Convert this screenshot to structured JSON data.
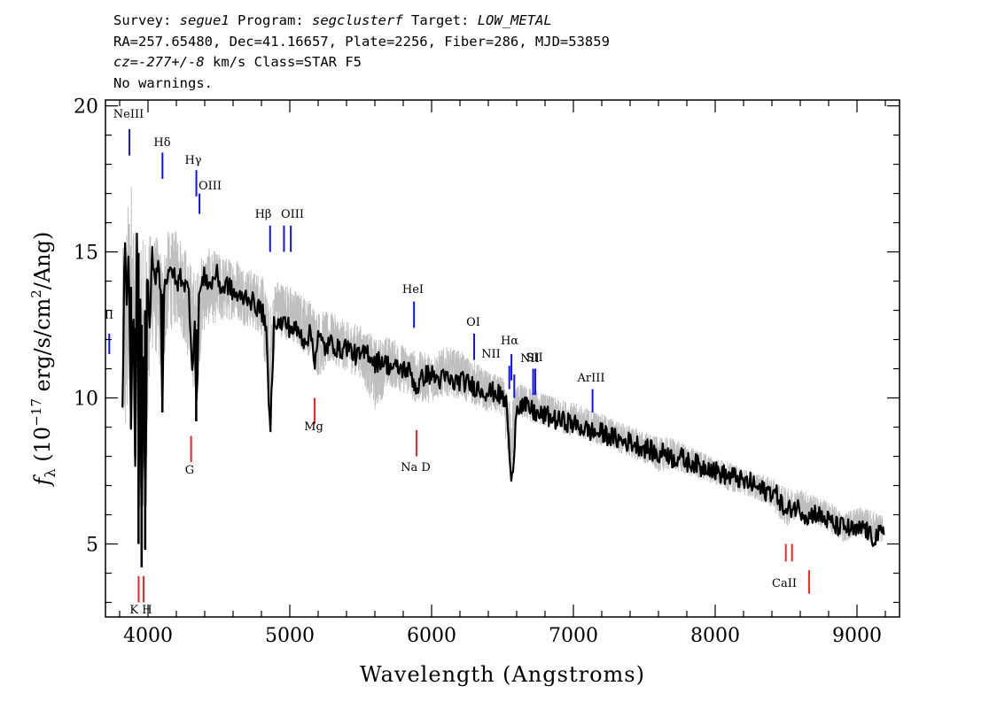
{
  "header": {
    "survey_label": "Survey:",
    "survey": "segue1",
    "program_label": "Program:",
    "program": "segclusterf",
    "target_label": "Target:",
    "target": "LOW_METAL",
    "line2": "RA=257.65480, Dec=41.16657, Plate=2256, Fiber=286, MJD=53859",
    "cz_label": "cz=",
    "cz": "-277+/-8",
    "cz_unit": "km/s",
    "class_text": "Class=STAR F5",
    "warnings": "No warnings."
  },
  "chart_data": {
    "type": "line",
    "xlabel": "Wavelength (Angstroms)",
    "ylabel": "f_λ (10^-17 erg/s/cm^2/Ang)",
    "xlim": [
      3700,
      9300
    ],
    "ylim": [
      2.5,
      20.2
    ],
    "x_ticks": [
      4000,
      5000,
      6000,
      7000,
      8000,
      9000
    ],
    "y_ticks": [
      5,
      10,
      15,
      20
    ],
    "grid": false,
    "series": [
      {
        "role": "spectrum-raw",
        "color": "#bebebe",
        "x": [
          3820,
          3850,
          3880,
          3910,
          3940,
          3960,
          3980,
          4020,
          4060,
          4100,
          4140,
          4180,
          4220,
          4260,
          4300,
          4340,
          4380,
          4420,
          4460,
          4500,
          4560,
          4620,
          4680,
          4740,
          4800,
          4860,
          4900,
          4960,
          5020,
          5080,
          5140,
          5200,
          5300,
          5400,
          5500,
          5600,
          5700,
          5800,
          5900,
          6000,
          6100,
          6200,
          6300,
          6400,
          6500,
          6560,
          6600,
          6700,
          6800,
          6900,
          7000,
          7100,
          7200,
          7300,
          7400,
          7500,
          7600,
          7700,
          7800,
          7900,
          8000,
          8100,
          8200,
          8300,
          8400,
          8500,
          8600,
          8700,
          8800,
          8900,
          9000,
          9100,
          9180
        ],
        "lower": [
          7.0,
          6.5,
          8.0,
          9.0,
          4.5,
          4.2,
          4.4,
          10.8,
          10.5,
          9.8,
          11.5,
          11.7,
          11.8,
          11.0,
          10.0,
          8.7,
          11.5,
          11.9,
          12.0,
          12.0,
          12.1,
          12.3,
          12.0,
          11.9,
          11.7,
          8.0,
          11.8,
          11.6,
          11.4,
          11.2,
          11.0,
          10.2,
          10.8,
          10.5,
          10.3,
          9.0,
          10.0,
          9.8,
          9.4,
          9.5,
          9.7,
          9.6,
          9.4,
          9.2,
          9.1,
          6.5,
          9.1,
          8.9,
          8.8,
          8.6,
          8.4,
          8.3,
          8.1,
          7.9,
          7.7,
          7.5,
          7.2,
          7.3,
          7.1,
          7.0,
          6.8,
          6.6,
          6.5,
          6.3,
          6.0,
          5.3,
          5.8,
          5.4,
          5.2,
          4.8,
          5.1,
          4.8,
          4.8
        ],
        "upper": [
          16.5,
          18.0,
          19.5,
          17.0,
          15.5,
          18.5,
          17.5,
          16.5,
          16.5,
          15.8,
          16.5,
          16.4,
          16.5,
          16.0,
          15.5,
          15.3,
          15.5,
          15.7,
          15.6,
          15.5,
          15.3,
          15.3,
          15.0,
          14.8,
          14.8,
          14.0,
          14.5,
          14.4,
          14.2,
          14.0,
          13.8,
          13.5,
          13.3,
          13.0,
          12.9,
          12.6,
          12.5,
          12.2,
          12.0,
          11.9,
          12.1,
          12.0,
          11.6,
          11.2,
          11.0,
          10.4,
          10.8,
          10.6,
          10.4,
          10.2,
          10.1,
          9.9,
          9.7,
          9.5,
          9.3,
          9.1,
          8.9,
          8.9,
          8.6,
          8.4,
          8.2,
          8.0,
          7.8,
          7.6,
          7.5,
          7.2,
          7.1,
          6.9,
          6.7,
          6.3,
          6.5,
          6.4,
          6.2
        ]
      },
      {
        "role": "spectrum-smoothed",
        "color": "#000000",
        "x": [
          3820,
          3835,
          3850,
          3865,
          3880,
          3895,
          3910,
          3925,
          3933,
          3945,
          3955,
          3968,
          3980,
          3995,
          4010,
          4030,
          4050,
          4070,
          4090,
          4101,
          4115,
          4140,
          4170,
          4200,
          4230,
          4260,
          4290,
          4310,
          4330,
          4340,
          4360,
          4400,
          4440,
          4480,
          4520,
          4560,
          4600,
          4650,
          4700,
          4750,
          4800,
          4830,
          4861,
          4890,
          4920,
          4960,
          5000,
          5050,
          5100,
          5150,
          5175,
          5200,
          5250,
          5300,
          5350,
          5400,
          5450,
          5500,
          5550,
          5600,
          5650,
          5700,
          5750,
          5800,
          5850,
          5893,
          5950,
          6000,
          6050,
          6100,
          6150,
          6200,
          6250,
          6300,
          6350,
          6400,
          6450,
          6500,
          6530,
          6563,
          6600,
          6650,
          6700,
          6750,
          6800,
          6850,
          6900,
          6950,
          7000,
          7050,
          7100,
          7150,
          7200,
          7250,
          7300,
          7350,
          7400,
          7450,
          7500,
          7550,
          7600,
          7650,
          7700,
          7750,
          7800,
          7850,
          7900,
          7950,
          8000,
          8050,
          8100,
          8150,
          8200,
          8250,
          8300,
          8350,
          8400,
          8450,
          8498,
          8542,
          8600,
          8662,
          8700,
          8750,
          8800,
          8850,
          8900,
          8950,
          9000,
          9050,
          9100,
          9150,
          9190
        ],
        "y": [
          9.4,
          15.5,
          13.0,
          15.0,
          9.0,
          13.5,
          8.0,
          17.5,
          5.0,
          14.0,
          4.2,
          13.0,
          4.8,
          14.5,
          12.0,
          15.0,
          14.0,
          14.8,
          13.5,
          9.5,
          14.2,
          14.0,
          14.5,
          13.8,
          14.2,
          13.9,
          13.6,
          11.0,
          12.5,
          9.2,
          13.5,
          14.2,
          13.8,
          14.3,
          13.7,
          13.9,
          13.6,
          13.4,
          13.5,
          13.2,
          13.0,
          12.6,
          8.7,
          12.8,
          12.5,
          12.6,
          12.4,
          12.3,
          12.0,
          12.2,
          11.3,
          12.1,
          11.7,
          11.9,
          11.6,
          11.8,
          11.5,
          11.4,
          11.6,
          11.2,
          11.3,
          11.1,
          11.0,
          11.0,
          10.9,
          10.3,
          10.8,
          10.8,
          10.6,
          10.7,
          10.5,
          10.6,
          10.5,
          10.4,
          10.3,
          10.2,
          10.2,
          10.0,
          9.8,
          6.8,
          9.8,
          9.7,
          9.6,
          9.4,
          9.4,
          9.3,
          9.2,
          9.2,
          9.1,
          9.0,
          8.9,
          8.8,
          8.8,
          8.7,
          8.6,
          8.5,
          8.5,
          8.4,
          8.3,
          8.2,
          8.0,
          8.2,
          7.9,
          8.0,
          7.8,
          7.8,
          7.6,
          7.7,
          7.5,
          7.4,
          7.3,
          7.3,
          7.1,
          7.1,
          6.9,
          6.8,
          6.8,
          6.6,
          6.0,
          6.3,
          6.2,
          5.9,
          6.1,
          5.9,
          5.8,
          5.6,
          5.6,
          5.5,
          5.4,
          5.6,
          5.2,
          5.3,
          5.3
        ]
      }
    ],
    "emission_lines": [
      {
        "label": "NeIII",
        "wave": 3869,
        "ymin": 18.3,
        "ymax": 19.2
      },
      {
        "label": "Hδ",
        "wave": 4102,
        "ymin": 17.5,
        "ymax": 18.4
      },
      {
        "label": "Hγ",
        "wave": 4341,
        "ymin": 16.9,
        "ymax": 17.8
      },
      {
        "label": "OIII",
        "wave": 4363,
        "ymin": 16.3,
        "ymax": 17.0
      },
      {
        "label": "Hβ",
        "wave": 4861,
        "ymin": 15.0,
        "ymax": 15.9
      },
      {
        "label": "OIII",
        "wave": 4959,
        "ymin": 15.0,
        "ymax": 15.9
      },
      {
        "label": "OIII",
        "wave": 5007,
        "ymin": 15.0,
        "ymax": 15.9
      },
      {
        "label": "HeI",
        "wave": 5876,
        "ymin": 12.4,
        "ymax": 13.3
      },
      {
        "label": "OI",
        "wave": 6300,
        "ymin": 11.3,
        "ymax": 12.2
      },
      {
        "label": "NII",
        "wave": 6548,
        "ymin": 10.3,
        "ymax": 11.1
      },
      {
        "label": "Hα",
        "wave": 6563,
        "ymin": 10.6,
        "ymax": 11.5
      },
      {
        "label": "NII",
        "wave": 6583,
        "ymin": 10.0,
        "ymax": 10.8
      },
      {
        "label": "SII",
        "wave": 6716,
        "ymin": 10.1,
        "ymax": 11.0
      },
      {
        "label": "SII",
        "wave": 6731,
        "ymin": 10.1,
        "ymax": 11.0
      },
      {
        "label": "ArIII",
        "wave": 7135,
        "ymin": 9.5,
        "ymax": 10.3
      },
      {
        "label": "OII",
        "wave": 3727,
        "ymin": 11.5,
        "ymax": 12.2
      }
    ],
    "absorption_lines": [
      {
        "label": "K",
        "wave": 3934,
        "ymin": 3.0,
        "ymax": 3.9
      },
      {
        "label": "H",
        "wave": 3969,
        "ymin": 3.0,
        "ymax": 3.9
      },
      {
        "label": "G",
        "wave": 4304,
        "ymin": 7.8,
        "ymax": 8.7
      },
      {
        "label": "Mg",
        "wave": 5175,
        "ymin": 9.1,
        "ymax": 10.0
      },
      {
        "label": "Na D",
        "wave": 5894,
        "ymin": 8.0,
        "ymax": 8.9
      },
      {
        "label": "CaII",
        "wave": 8498,
        "ymin": 4.4,
        "ymax": 5.0
      },
      {
        "label": "CaII",
        "wave": 8542,
        "ymin": 4.4,
        "ymax": 5.0
      },
      {
        "label": "CaII",
        "wave": 8662,
        "ymin": 3.3,
        "ymax": 4.1
      }
    ],
    "line_colors": {
      "emission": "#1010ff",
      "absorption": "#ff2020"
    },
    "text": {
      "OII_partial": "II",
      "NeIII": "NeIII",
      "Hdelta": "Hδ",
      "Hgamma": "Hγ",
      "OIII_1": "OIII",
      "Hbeta": "Hβ",
      "OIII_2": "OIII",
      "HeI": "HeI",
      "OI": "OI",
      "NII_1": "NII",
      "Halpha": "Hα",
      "NII_2": "NII",
      "SII": "SII",
      "ArIII": "ArIII",
      "Mg": "Mg",
      "G": "G",
      "NaD": "Na D",
      "KH": "K H",
      "CaII": "CaII"
    }
  }
}
